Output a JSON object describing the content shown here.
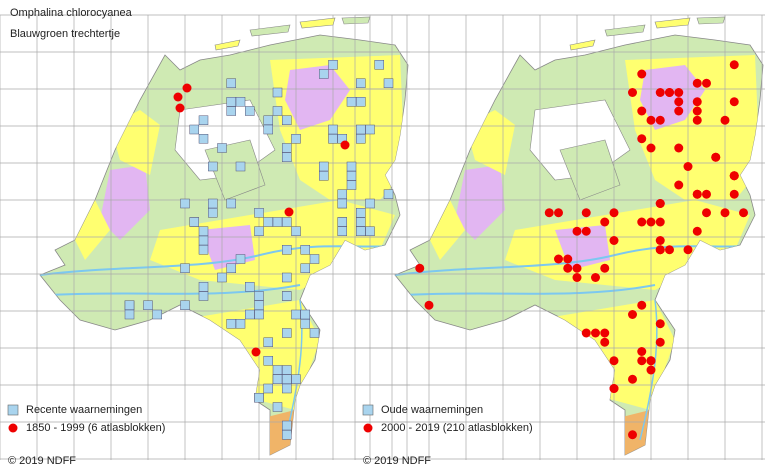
{
  "title": {
    "species": "Omphalina chlorocyanea",
    "common_name": "Blauwgroen trechtertje"
  },
  "maps": [
    {
      "legend": {
        "square": "Recente waarnemingen",
        "dot": "1850 - 1999 (6 atlasblokken)"
      },
      "copyright": "© 2019 NDFF"
    },
    {
      "legend": {
        "square": "Oude waarnemingen",
        "dot": "2000 - 2019 (210 atlasblokken)"
      },
      "copyright": "© 2019 NDFF"
    }
  ]
}
